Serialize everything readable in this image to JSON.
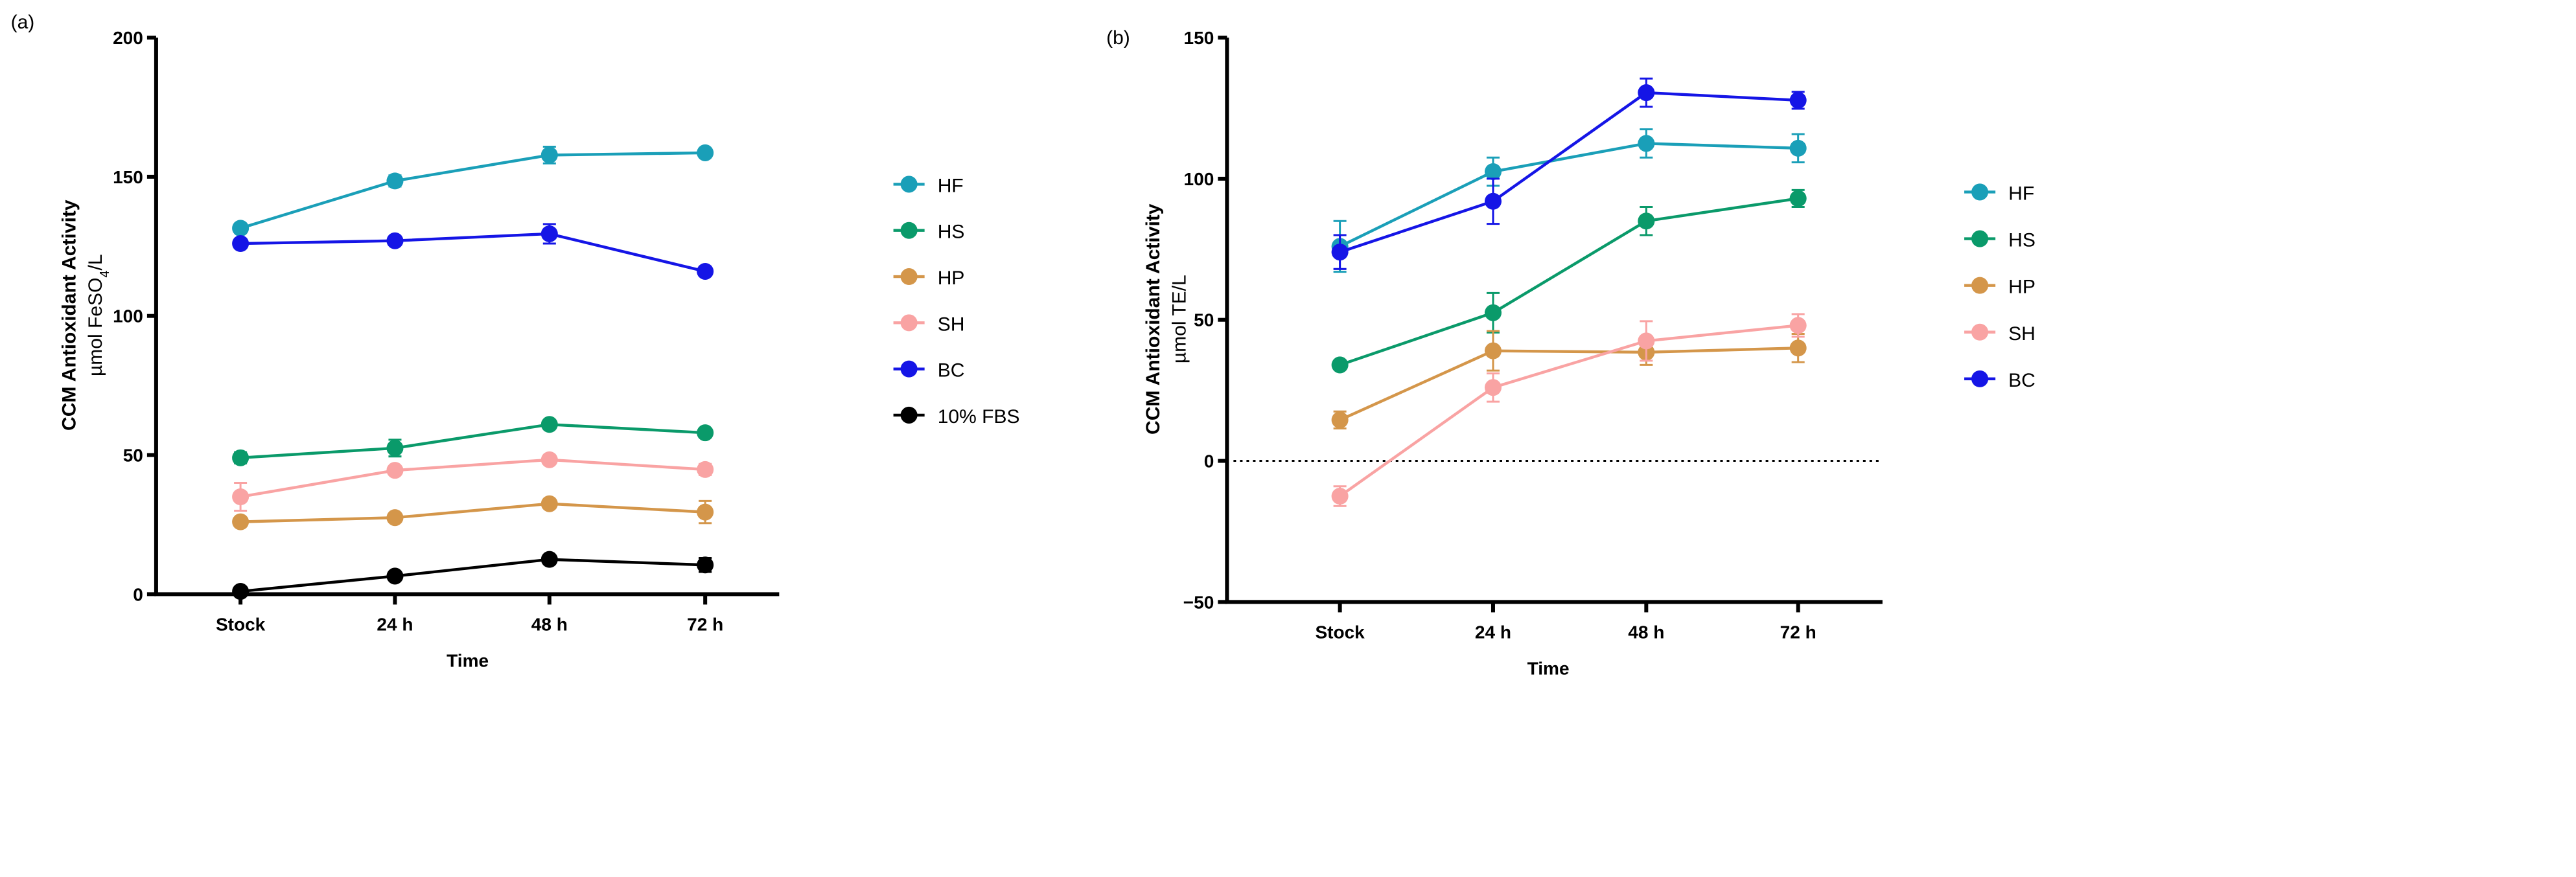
{
  "chart_data": [
    {
      "type": "line",
      "panel_label": "(a)",
      "xlabel": "Time",
      "ylabel": "CCM Antioxidant Activity",
      "ylabel_unit_parts": [
        "µmol FeSO",
        "4",
        "/L"
      ],
      "categories": [
        "Stock",
        "24 h",
        "48 h",
        "72 h"
      ],
      "ylim": [
        0,
        200
      ],
      "yticks": [
        0,
        50,
        100,
        150,
        200
      ],
      "legend_position": "right",
      "series": [
        {
          "name": "HF",
          "color": "#1a9fb8",
          "values": [
            131.5,
            148.5,
            157.8,
            158.6
          ],
          "errors": [
            1.5,
            2,
            3,
            1.5
          ]
        },
        {
          "name": "HS",
          "color": "#0a9a6a",
          "values": [
            49,
            52.5,
            61,
            58
          ],
          "errors": [
            2,
            3,
            1.5,
            1.5
          ]
        },
        {
          "name": "HP",
          "color": "#d4964a",
          "values": [
            26,
            27.5,
            32.5,
            29.5
          ],
          "errors": [
            1.5,
            1.5,
            1.5,
            4
          ]
        },
        {
          "name": "SH",
          "color": "#f9a3a3",
          "values": [
            35,
            44.5,
            48.3,
            44.8
          ],
          "errors": [
            5,
            1.5,
            1.5,
            2
          ]
        },
        {
          "name": "BC",
          "color": "#1515e6",
          "values": [
            126,
            127,
            129.5,
            116
          ],
          "errors": [
            1.5,
            1.5,
            3.5,
            1.5
          ]
        },
        {
          "name": "10% FBS",
          "color": "#000000",
          "values": [
            1,
            6.5,
            12.5,
            10.5
          ],
          "errors": [
            0.5,
            1,
            1.5,
            2.5
          ]
        }
      ]
    },
    {
      "type": "line",
      "panel_label": "(b)",
      "xlabel": "Time",
      "ylabel": "CCM Antioxidant Activity",
      "ylabel_unit_parts": [
        "µmol TE/L"
      ],
      "categories": [
        "Stock",
        "24 h",
        "48 h",
        "72 h"
      ],
      "ylim": [
        -50,
        150
      ],
      "yticks": [
        -50,
        0,
        50,
        100,
        150
      ],
      "reference_line": 0,
      "legend_position": "right",
      "series": [
        {
          "name": "HF",
          "color": "#1a9fb8",
          "values": [
            76,
            102.5,
            112.5,
            110.8
          ],
          "errors": [
            9,
            5,
            5,
            5
          ]
        },
        {
          "name": "HS",
          "color": "#0a9a6a",
          "values": [
            34,
            52.5,
            85,
            93
          ],
          "errors": [
            1.5,
            7,
            5,
            3
          ]
        },
        {
          "name": "HP",
          "color": "#d4964a",
          "values": [
            14.5,
            39,
            38.5,
            40
          ],
          "errors": [
            3,
            7,
            4.5,
            5
          ]
        },
        {
          "name": "SH",
          "color": "#f9a3a3",
          "values": [
            -12.5,
            26,
            42.5,
            48
          ],
          "errors": [
            3.5,
            5,
            7,
            4
          ]
        },
        {
          "name": "BC",
          "color": "#1515e6",
          "values": [
            74,
            92,
            130.5,
            127.8
          ],
          "errors": [
            6,
            8,
            5,
            3
          ]
        }
      ]
    }
  ]
}
